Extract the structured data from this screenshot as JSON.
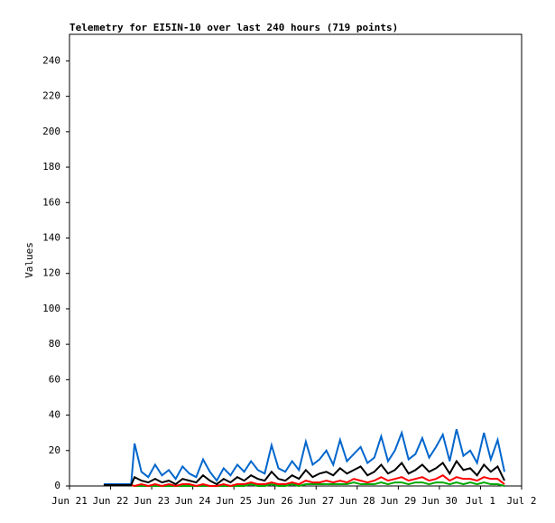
{
  "chart_data": {
    "type": "line",
    "title": "Telemetry for EI5IN-10 over last 240 hours (719 points)",
    "y_label": "Values",
    "x": [
      20,
      24,
      28,
      32,
      36,
      38,
      42,
      46,
      50,
      54,
      58,
      62,
      66,
      70,
      74,
      78,
      82,
      86,
      90,
      94,
      98,
      102,
      106,
      110,
      114,
      118,
      122,
      126,
      130,
      134,
      138,
      142,
      146,
      150,
      154,
      158,
      162,
      166,
      170,
      174,
      178,
      182,
      186,
      190,
      194,
      198,
      202,
      206,
      210,
      214,
      218,
      222,
      226,
      230,
      234,
      238,
      242,
      246,
      250,
      254
    ],
    "xlim": [
      0,
      264
    ],
    "xticks": [
      {
        "value": 0,
        "label": "Jun 21"
      },
      {
        "value": 24,
        "label": "Jun 22"
      },
      {
        "value": 48,
        "label": "Jun 23"
      },
      {
        "value": 72,
        "label": "Jun 24"
      },
      {
        "value": 96,
        "label": "Jun 25"
      },
      {
        "value": 120,
        "label": "Jun 26"
      },
      {
        "value": 144,
        "label": "Jun 27"
      },
      {
        "value": 168,
        "label": "Jun 28"
      },
      {
        "value": 192,
        "label": "Jun 29"
      },
      {
        "value": 216,
        "label": "Jun 30"
      },
      {
        "value": 240,
        "label": "Jul 1"
      },
      {
        "value": 264,
        "label": "Jul 2"
      }
    ],
    "ylim": [
      0,
      255
    ],
    "yticks": [
      0,
      20,
      40,
      60,
      80,
      100,
      120,
      140,
      160,
      180,
      200,
      220,
      240
    ],
    "series": [
      {
        "color": "#0066cc",
        "values": [
          1,
          1,
          1,
          1,
          1,
          24,
          8,
          5,
          12,
          6,
          9,
          4,
          11,
          7,
          5,
          15,
          8,
          3,
          10,
          6,
          12,
          8,
          14,
          9,
          7,
          23,
          10,
          8,
          14,
          9,
          25,
          12,
          15,
          20,
          12,
          26,
          14,
          18,
          22,
          13,
          16,
          28,
          14,
          20,
          30,
          15,
          18,
          27,
          16,
          22,
          29,
          14,
          32,
          17,
          20,
          13,
          30,
          15,
          26,
          8
        ]
      },
      {
        "color": "#00aa00",
        "values": [
          0.5,
          0.5,
          0.5,
          0.5,
          0.5,
          0,
          0,
          0,
          0,
          0,
          0,
          0,
          0,
          0,
          0,
          0,
          0,
          0,
          0,
          0,
          0,
          0,
          1,
          0,
          0,
          1,
          0,
          0,
          1,
          0,
          1,
          1,
          1,
          1,
          1,
          1,
          1,
          2,
          1,
          1,
          1,
          2,
          1,
          2,
          2,
          1,
          2,
          2,
          1,
          2,
          2,
          1,
          2,
          1,
          2,
          1,
          2,
          1,
          1,
          0
        ]
      },
      {
        "color": "#ff0000",
        "values": [
          0.5,
          0.5,
          0.5,
          0.5,
          0.5,
          0,
          1,
          0,
          1,
          0,
          1,
          0,
          1,
          1,
          0,
          1,
          0,
          0,
          1,
          0,
          1,
          1,
          2,
          1,
          1,
          2,
          1,
          1,
          2,
          1,
          3,
          2,
          2,
          3,
          2,
          3,
          2,
          4,
          3,
          2,
          3,
          5,
          3,
          4,
          5,
          3,
          4,
          5,
          3,
          4,
          6,
          3,
          5,
          4,
          4,
          3,
          5,
          4,
          4,
          1
        ]
      },
      {
        "color": "#000000",
        "values": [
          0.5,
          0.5,
          0.5,
          0.5,
          0.5,
          5,
          3,
          2,
          4,
          2,
          3,
          1,
          4,
          3,
          2,
          6,
          3,
          1,
          4,
          2,
          5,
          3,
          6,
          4,
          3,
          8,
          4,
          3,
          6,
          4,
          9,
          5,
          7,
          8,
          6,
          10,
          7,
          9,
          11,
          6,
          8,
          12,
          7,
          9,
          13,
          7,
          9,
          12,
          8,
          10,
          13,
          7,
          14,
          9,
          10,
          6,
          12,
          8,
          11,
          3
        ]
      }
    ]
  }
}
